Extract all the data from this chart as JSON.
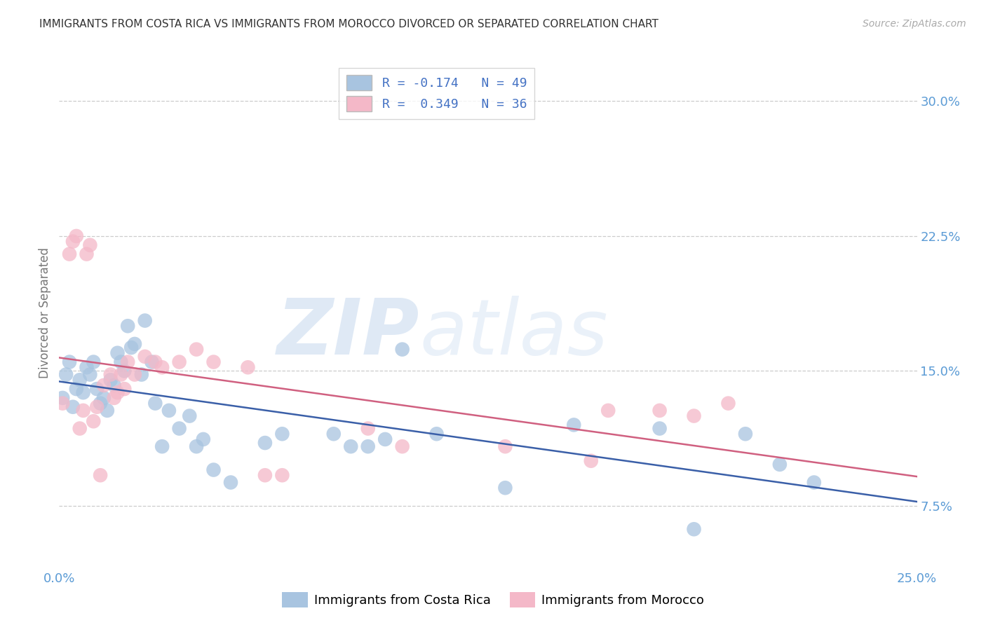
{
  "title": "IMMIGRANTS FROM COSTA RICA VS IMMIGRANTS FROM MOROCCO DIVORCED OR SEPARATED CORRELATION CHART",
  "source": "Source: ZipAtlas.com",
  "ylabel": "Divorced or Separated",
  "xlim": [
    0.0,
    0.25
  ],
  "ylim": [
    0.04,
    0.325
  ],
  "xticks": [
    0.0,
    0.05,
    0.1,
    0.15,
    0.2,
    0.25
  ],
  "xticklabels": [
    "0.0%",
    "",
    "",
    "",
    "",
    "25.0%"
  ],
  "yticks": [
    0.075,
    0.15,
    0.225,
    0.3
  ],
  "yticklabels": [
    "7.5%",
    "15.0%",
    "22.5%",
    "30.0%"
  ],
  "legend_blue_label": "R = -0.174   N = 49",
  "legend_pink_label": "R =  0.349   N = 36",
  "blue_scatter_color": "#a8c4e0",
  "pink_scatter_color": "#f4b8c8",
  "blue_line_color": "#3a5fa8",
  "pink_line_color": "#d06080",
  "grid_color": "#cccccc",
  "background_color": "#ffffff",
  "axis_tick_color": "#5b9bd5",
  "title_fontsize": 11,
  "blue_points_x": [
    0.001,
    0.002,
    0.003,
    0.004,
    0.005,
    0.006,
    0.007,
    0.008,
    0.009,
    0.01,
    0.011,
    0.012,
    0.013,
    0.014,
    0.015,
    0.016,
    0.017,
    0.018,
    0.019,
    0.02,
    0.021,
    0.022,
    0.024,
    0.025,
    0.027,
    0.028,
    0.03,
    0.032,
    0.035,
    0.038,
    0.04,
    0.042,
    0.045,
    0.05,
    0.06,
    0.065,
    0.08,
    0.085,
    0.09,
    0.095,
    0.1,
    0.11,
    0.13,
    0.15,
    0.175,
    0.185,
    0.2,
    0.21,
    0.22
  ],
  "blue_points_y": [
    0.135,
    0.148,
    0.155,
    0.13,
    0.14,
    0.145,
    0.138,
    0.152,
    0.148,
    0.155,
    0.14,
    0.132,
    0.135,
    0.128,
    0.145,
    0.142,
    0.16,
    0.155,
    0.15,
    0.175,
    0.163,
    0.165,
    0.148,
    0.178,
    0.155,
    0.132,
    0.108,
    0.128,
    0.118,
    0.125,
    0.108,
    0.112,
    0.095,
    0.088,
    0.11,
    0.115,
    0.115,
    0.108,
    0.108,
    0.112,
    0.162,
    0.115,
    0.085,
    0.12,
    0.118,
    0.062,
    0.115,
    0.098,
    0.088
  ],
  "pink_points_x": [
    0.001,
    0.003,
    0.004,
    0.005,
    0.006,
    0.007,
    0.008,
    0.009,
    0.01,
    0.011,
    0.012,
    0.013,
    0.015,
    0.016,
    0.017,
    0.018,
    0.019,
    0.02,
    0.022,
    0.025,
    0.028,
    0.03,
    0.035,
    0.04,
    0.045,
    0.055,
    0.06,
    0.065,
    0.09,
    0.1,
    0.13,
    0.155,
    0.16,
    0.175,
    0.185,
    0.195
  ],
  "pink_points_y": [
    0.132,
    0.215,
    0.222,
    0.225,
    0.118,
    0.128,
    0.215,
    0.22,
    0.122,
    0.13,
    0.092,
    0.142,
    0.148,
    0.135,
    0.138,
    0.148,
    0.14,
    0.155,
    0.148,
    0.158,
    0.155,
    0.152,
    0.155,
    0.162,
    0.155,
    0.152,
    0.092,
    0.092,
    0.118,
    0.108,
    0.108,
    0.1,
    0.128,
    0.128,
    0.125,
    0.132
  ]
}
